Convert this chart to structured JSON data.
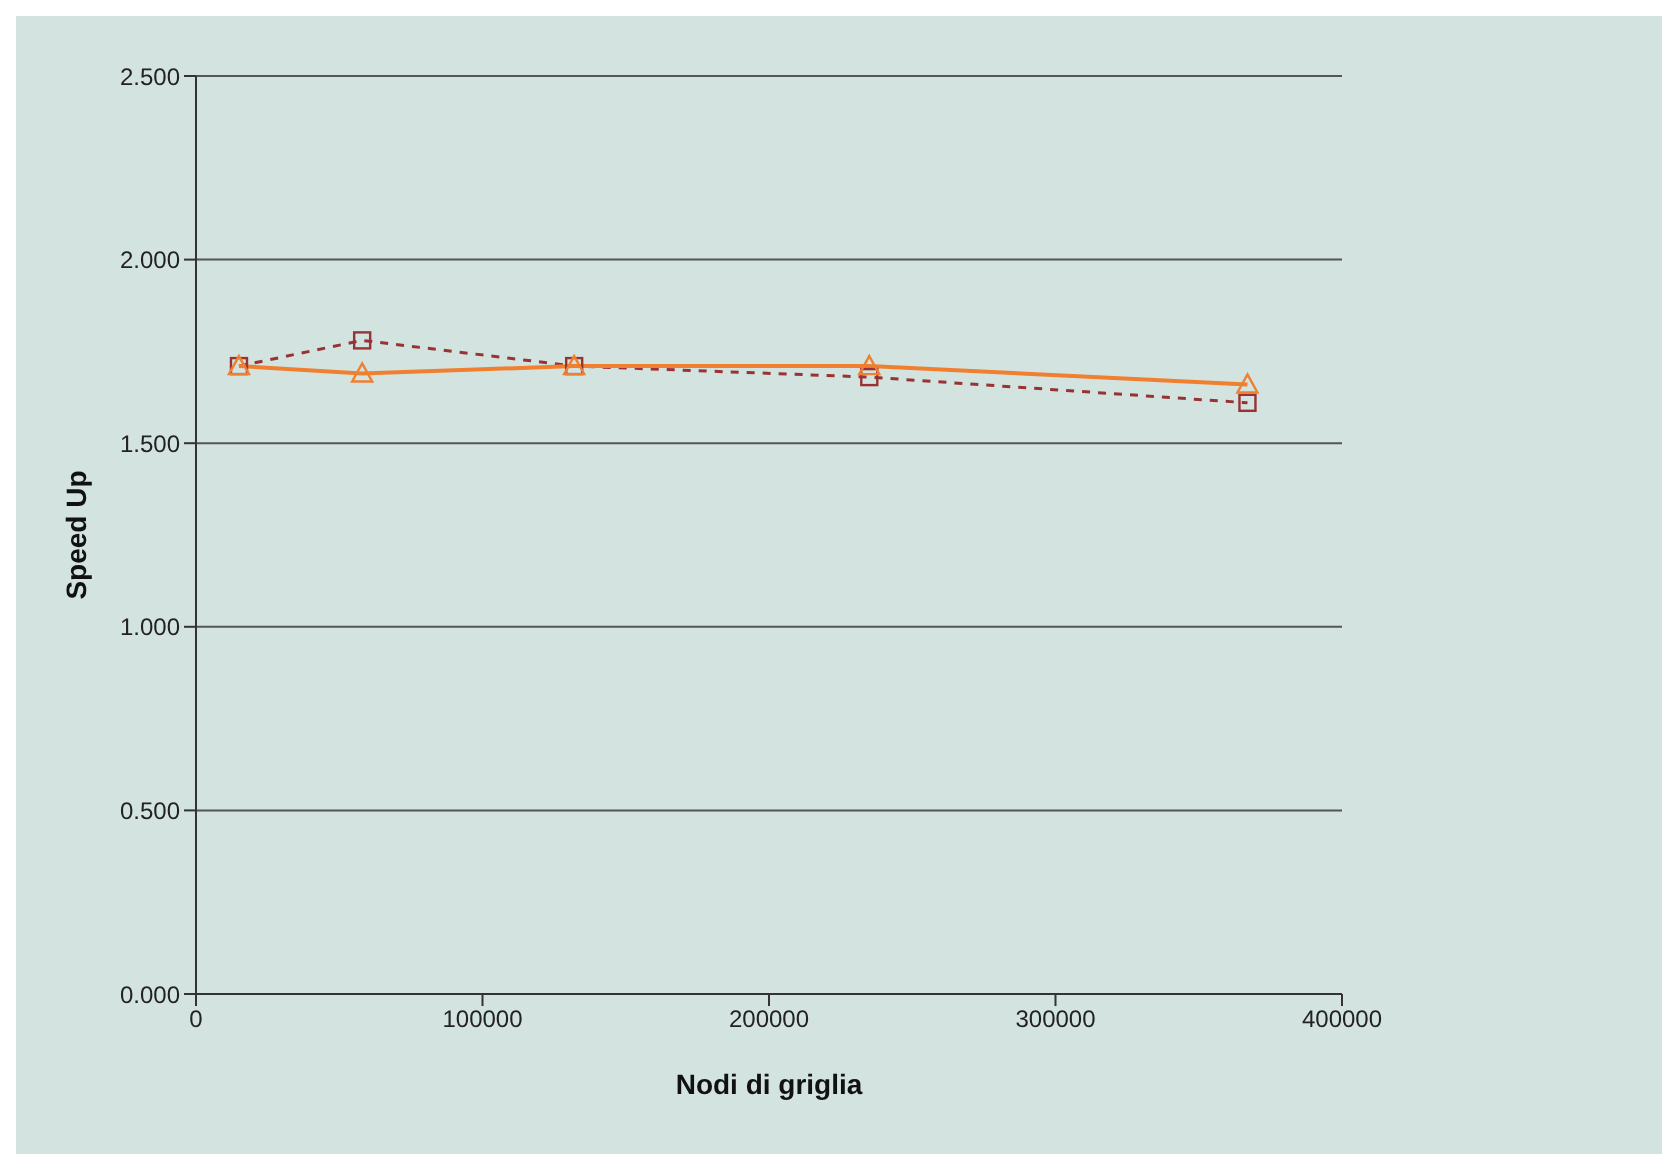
{
  "chart_data": {
    "type": "line",
    "xlabel": "Nodi di griglia",
    "ylabel": "Speed Up",
    "x": [
      15000,
      58000,
      132000,
      235000,
      367000
    ],
    "series": [
      {
        "color": "#993333",
        "values": [
          1.71,
          1.78,
          1.71,
          1.68,
          1.61
        ],
        "marker": "square",
        "line_style": "dashed"
      },
      {
        "color": "#f08030",
        "values": [
          1.71,
          1.69,
          1.71,
          1.71,
          1.66
        ],
        "marker": "triangle",
        "line_style": "solid"
      }
    ],
    "xlim": [
      0,
      400000
    ],
    "xticks": [
      0,
      100000,
      200000,
      300000,
      400000
    ],
    "ylim": [
      0,
      2.5
    ],
    "yticks": [
      {
        "value": 0,
        "label": "0.000"
      },
      {
        "value": 0.5,
        "label": "0.500"
      },
      {
        "value": 1,
        "label": "1.000"
      },
      {
        "value": 1.5,
        "label": "1.500"
      },
      {
        "value": 2,
        "label": "2.000"
      },
      {
        "value": 2.5,
        "label": "2.500"
      }
    ],
    "grid": "y",
    "legend": false
  }
}
